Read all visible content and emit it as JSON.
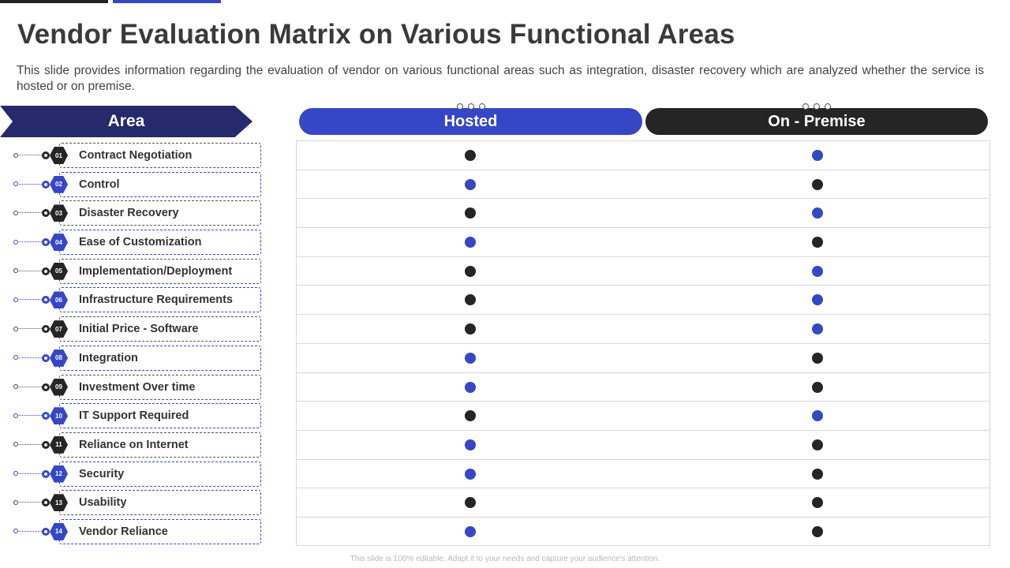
{
  "title": "Vendor Evaluation Matrix on Various Functional Areas",
  "subtitle": "This slide provides information regarding the evaluation of vendor on various functional areas such as integration, disaster recovery which are analyzed whether the service is hosted or on premise.",
  "headers": {
    "area": "Area",
    "hosted": "Hosted",
    "on_premise": "On - Premise"
  },
  "colors": {
    "dark": "#252525",
    "blue": "#3647c6",
    "navy": "#26296b"
  },
  "rows": [
    {
      "num": "01",
      "label": "Contract Negotiation",
      "accent": "dark",
      "hosted": "dark",
      "on_premise": "blue"
    },
    {
      "num": "02",
      "label": "Control",
      "accent": "blue",
      "hosted": "blue",
      "on_premise": "dark"
    },
    {
      "num": "03",
      "label": "Disaster Recovery",
      "accent": "dark",
      "hosted": "dark",
      "on_premise": "blue"
    },
    {
      "num": "04",
      "label": "Ease of Customization",
      "accent": "blue",
      "hosted": "blue",
      "on_premise": "dark"
    },
    {
      "num": "05",
      "label": "Implementation/Deployment",
      "accent": "dark",
      "hosted": "dark",
      "on_premise": "blue"
    },
    {
      "num": "06",
      "label": "Infrastructure Requirements",
      "accent": "blue",
      "hosted": "dark",
      "on_premise": "blue"
    },
    {
      "num": "07",
      "label": "Initial Price - Software",
      "accent": "dark",
      "hosted": "dark",
      "on_premise": "blue"
    },
    {
      "num": "08",
      "label": "Integration",
      "accent": "blue",
      "hosted": "blue",
      "on_premise": "dark"
    },
    {
      "num": "09",
      "label": "Investment Over time",
      "accent": "dark",
      "hosted": "blue",
      "on_premise": "dark"
    },
    {
      "num": "10",
      "label": "IT Support Required",
      "accent": "blue",
      "hosted": "dark",
      "on_premise": "blue"
    },
    {
      "num": "11",
      "label": "Reliance on Internet",
      "accent": "dark",
      "hosted": "blue",
      "on_premise": "dark"
    },
    {
      "num": "12",
      "label": "Security",
      "accent": "blue",
      "hosted": "blue",
      "on_premise": "dark"
    },
    {
      "num": "13",
      "label": "Usability",
      "accent": "dark",
      "hosted": "dark",
      "on_premise": "dark"
    },
    {
      "num": "14",
      "label": "Vendor Reliance",
      "accent": "blue",
      "hosted": "blue",
      "on_premise": "dark"
    }
  ],
  "footer": "This slide is 100% editable. Adapt it to your needs and capture your audience's attention."
}
